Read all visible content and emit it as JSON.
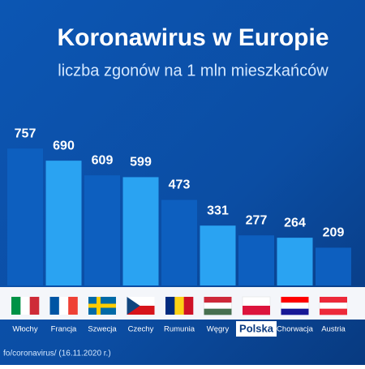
{
  "chart_data": {
    "type": "bar",
    "title": "Koronawirus w Europie",
    "subtitle": "liczba zgonów na 1 mln mieszkańców",
    "categories": [
      "Włochy",
      "Francja",
      "Szwecja",
      "Czechy",
      "Rumunia",
      "Węgry",
      "Polska",
      "Chorwacja",
      "Austria"
    ],
    "values": [
      757,
      690,
      609,
      599,
      473,
      331,
      277,
      264,
      209
    ],
    "colors": [
      "#0d5fbf",
      "#2aa3f2"
    ],
    "highlight": "Polska",
    "source": "fo/coronavirus/ (16.11.2020 r.)"
  }
}
